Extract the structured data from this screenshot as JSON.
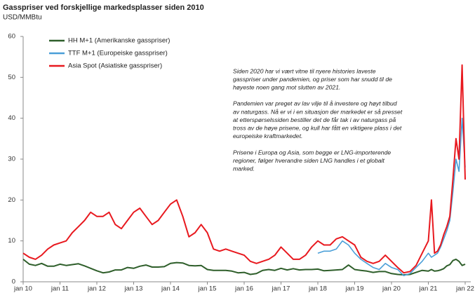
{
  "chart_data": {
    "type": "line",
    "title": "Gasspriser ved forskjellige markedsplasser siden 2010",
    "subtitle": "USD/MMBtu",
    "x": [
      "2010-01",
      "2010-03",
      "2010-05",
      "2010-07",
      "2010-09",
      "2010-11",
      "2011-01",
      "2011-03",
      "2011-05",
      "2011-07",
      "2011-09",
      "2011-11",
      "2012-01",
      "2012-03",
      "2012-05",
      "2012-07",
      "2012-09",
      "2012-11",
      "2013-01",
      "2013-03",
      "2013-05",
      "2013-07",
      "2013-09",
      "2013-11",
      "2014-01",
      "2014-03",
      "2014-05",
      "2014-07",
      "2014-09",
      "2014-11",
      "2015-01",
      "2015-03",
      "2015-05",
      "2015-07",
      "2015-09",
      "2015-11",
      "2016-01",
      "2016-03",
      "2016-05",
      "2016-07",
      "2016-09",
      "2016-11",
      "2017-01",
      "2017-03",
      "2017-05",
      "2017-07",
      "2017-09",
      "2017-11",
      "2018-01",
      "2018-03",
      "2018-05",
      "2018-07",
      "2018-09",
      "2018-11",
      "2019-01",
      "2019-03",
      "2019-05",
      "2019-07",
      "2019-09",
      "2019-11",
      "2020-01",
      "2020-03",
      "2020-05",
      "2020-07",
      "2020-09",
      "2020-11",
      "2021-01",
      "2021-02",
      "2021-03",
      "2021-04",
      "2021-05",
      "2021-06",
      "2021-07",
      "2021-08",
      "2021-09",
      "2021-10",
      "2021-11",
      "2021-12",
      "2022-01"
    ],
    "series": [
      {
        "name": "HH M+1 (Amerikanske gasspriser)",
        "color": "#2e5e2a",
        "width": 2,
        "values": [
          5.5,
          4.3,
          4,
          4.5,
          3.8,
          3.8,
          4.3,
          4,
          4.2,
          4.4,
          3.9,
          3.3,
          2.7,
          2.2,
          2.4,
          2.9,
          2.9,
          3.5,
          3.3,
          3.8,
          4.1,
          3.6,
          3.6,
          3.7,
          4.5,
          4.7,
          4.6,
          4,
          3.9,
          4,
          3,
          2.8,
          2.8,
          2.8,
          2.6,
          2.2,
          2.3,
          1.8,
          2,
          2.8,
          3,
          2.8,
          3.3,
          2.9,
          3.2,
          2.9,
          3,
          3,
          3.1,
          2.7,
          2.8,
          2.9,
          3,
          4.1,
          3,
          2.8,
          2.6,
          2.3,
          2.5,
          2.5,
          2,
          1.8,
          1.7,
          1.8,
          2.3,
          2.8,
          2.6,
          3,
          2.6,
          2.7,
          2.9,
          3.2,
          3.9,
          4.2,
          5.2,
          5.5,
          5,
          4,
          4.3
        ]
      },
      {
        "name": "TTF M+1 (Europeiske gasspriser)",
        "color": "#4a9fd8",
        "width": 1.6,
        "values": [
          null,
          null,
          null,
          null,
          null,
          null,
          null,
          null,
          null,
          null,
          null,
          null,
          null,
          null,
          null,
          null,
          null,
          null,
          null,
          null,
          null,
          null,
          null,
          null,
          null,
          null,
          null,
          null,
          null,
          null,
          null,
          null,
          null,
          null,
          null,
          null,
          null,
          null,
          null,
          null,
          null,
          null,
          null,
          null,
          null,
          null,
          null,
          null,
          7,
          7.5,
          7.5,
          8,
          10,
          9,
          7,
          5.5,
          4.5,
          3.5,
          3,
          4.5,
          3.5,
          3,
          1.5,
          2,
          3.5,
          5,
          7,
          6,
          6.5,
          7,
          8.5,
          10.5,
          12.5,
          15,
          22,
          30,
          27,
          40,
          28
        ]
      },
      {
        "name": "Asia Spot (Asiatiske gasspriser)",
        "color": "#e8191f",
        "width": 2,
        "values": [
          7,
          6,
          5.5,
          6.5,
          8,
          9,
          9.5,
          10,
          12,
          13.5,
          15,
          17,
          16,
          16,
          17,
          14,
          13,
          15,
          17,
          18,
          16,
          14,
          15,
          17,
          19,
          20,
          16,
          11,
          12,
          14,
          12,
          8,
          7.5,
          8,
          7.5,
          7,
          6.5,
          5,
          4.5,
          5,
          5.5,
          6.5,
          8.5,
          7,
          5.5,
          5.5,
          6.5,
          8.5,
          10,
          9,
          9,
          10.5,
          11,
          10,
          9,
          6,
          5,
          4.5,
          5,
          6.5,
          5,
          3.5,
          2.2,
          2.5,
          4,
          7,
          10,
          20,
          7,
          7.5,
          9,
          11.5,
          13.5,
          16,
          25,
          35,
          30,
          53,
          25
        ]
      }
    ],
    "xlim": [
      "2010-01",
      "2022-01"
    ],
    "xticks": [
      {
        "value": "2010-01",
        "label": "jan 10"
      },
      {
        "value": "2011-01",
        "label": "jan 11"
      },
      {
        "value": "2012-01",
        "label": "jan 12"
      },
      {
        "value": "2013-01",
        "label": "jan 13"
      },
      {
        "value": "2014-01",
        "label": "jan 14"
      },
      {
        "value": "2015-01",
        "label": "jan 15"
      },
      {
        "value": "2016-01",
        "label": "jan 16"
      },
      {
        "value": "2017-01",
        "label": "jan 17"
      },
      {
        "value": "2018-01",
        "label": "jan 18"
      },
      {
        "value": "2019-01",
        "label": "jan 19"
      },
      {
        "value": "2020-01",
        "label": "jan 20"
      },
      {
        "value": "2021-01",
        "label": "jan 21"
      },
      {
        "value": "2022-01",
        "label": "jan 22"
      }
    ],
    "ylim": [
      0,
      60
    ],
    "yticks": [
      0,
      10,
      20,
      30,
      40,
      50,
      60
    ],
    "grid": false,
    "legend": "top-left",
    "annotation": [
      [
        "Siden 2020 har vi vært vitne til nyere histories laveste",
        "gasspriser under pandemien, og priser som har snudd til de",
        "høyeste noen gang mot slutten av 2021."
      ],
      [
        "Pandemien var preget av lav vilje til å investere og høyt tilbud",
        "av naturgass. Nå er vi i en situasjon der markedet er så presset",
        "at etterspørselssiden bestiller det de får tak i av naturgass på",
        "tross av de høye prisene, og kull har fått en viktigere plass i det",
        "europeiske kraftmarkedet."
      ],
      [
        "Prisene i Europa og Asia, som begge er LNG-importerende",
        "regioner, følger hverandre siden LNG handles i et globalt",
        "marked."
      ]
    ]
  }
}
